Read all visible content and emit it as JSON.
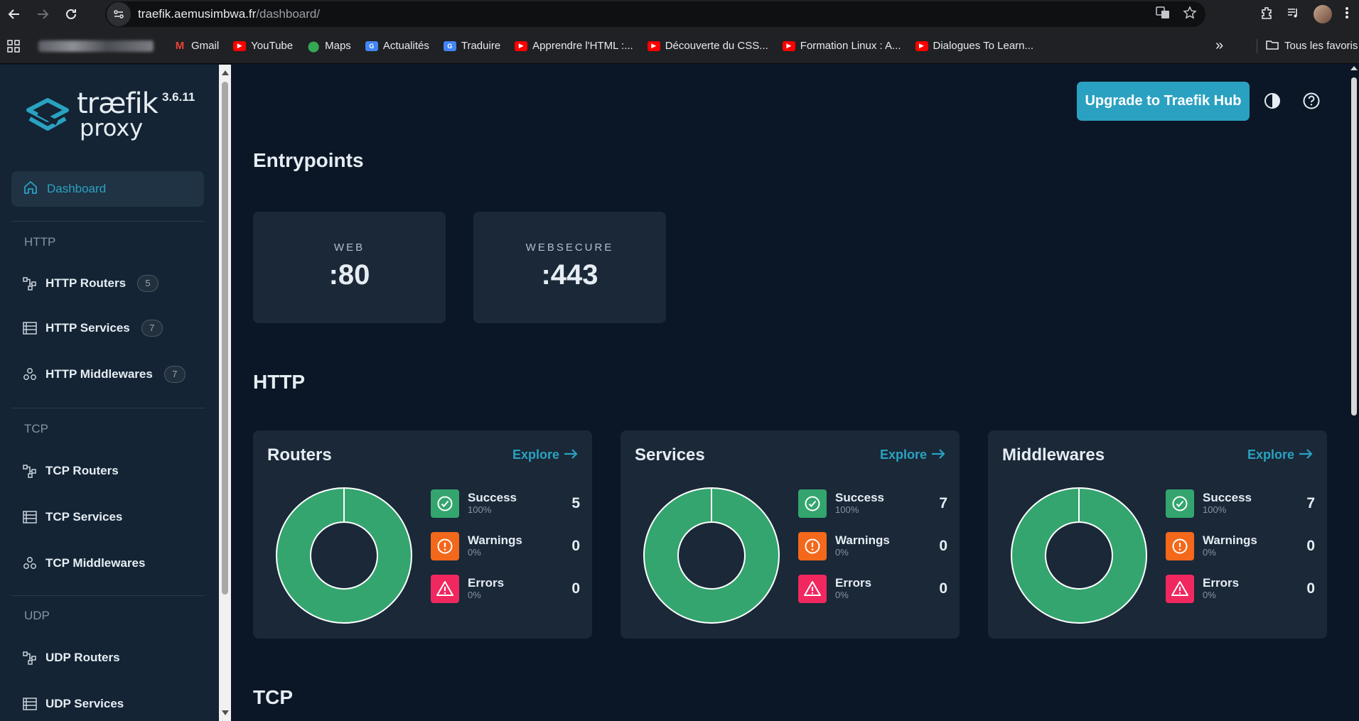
{
  "browser": {
    "url_host": "traefik.aemusimbwa.fr",
    "url_path": "/dashboard/",
    "bookmarks": [
      {
        "label": "Gmail",
        "icon": "gmail-icon"
      },
      {
        "label": "YouTube",
        "icon": "youtube-icon"
      },
      {
        "label": "Maps",
        "icon": "maps-icon"
      },
      {
        "label": "Actualités",
        "icon": "news-icon"
      },
      {
        "label": "Traduire",
        "icon": "translate-icon"
      },
      {
        "label": "Apprendre l'HTML :...",
        "icon": "youtube-icon"
      },
      {
        "label": "Découverte du CSS...",
        "icon": "youtube-icon"
      },
      {
        "label": "Formation Linux : A...",
        "icon": "youtube-icon"
      },
      {
        "label": "Dialogues To Learn...",
        "icon": "youtube-icon"
      }
    ],
    "all_bookmarks": "Tous les favoris",
    "more": "»"
  },
  "sidebar": {
    "brand_name": "træfik",
    "brand_sub": "proxy",
    "version": "3.6.11",
    "dashboard": "Dashboard",
    "sections": [
      {
        "title": "HTTP",
        "items": [
          {
            "label": "HTTP Routers",
            "count": "5"
          },
          {
            "label": "HTTP Services",
            "count": "7"
          },
          {
            "label": "HTTP Middlewares",
            "count": "7"
          }
        ]
      },
      {
        "title": "TCP",
        "items": [
          {
            "label": "TCP Routers"
          },
          {
            "label": "TCP Services"
          },
          {
            "label": "TCP Middlewares"
          }
        ]
      },
      {
        "title": "UDP",
        "items": [
          {
            "label": "UDP Routers"
          },
          {
            "label": "UDP Services"
          }
        ]
      }
    ]
  },
  "header": {
    "upgrade_label": "Upgrade to Traefik Hub"
  },
  "entrypoints": {
    "title": "Entrypoints",
    "items": [
      {
        "name": "WEB",
        "port": ":80"
      },
      {
        "name": "WEBSECURE",
        "port": ":443"
      }
    ]
  },
  "http": {
    "title": "HTTP",
    "explore_label": "Explore",
    "cards": [
      {
        "title": "Routers",
        "success": "5",
        "success_pct": "100%",
        "warnings": "0",
        "warnings_pct": "0%",
        "errors": "0",
        "errors_pct": "0%"
      },
      {
        "title": "Services",
        "success": "7",
        "success_pct": "100%",
        "warnings": "0",
        "warnings_pct": "0%",
        "errors": "0",
        "errors_pct": "0%"
      },
      {
        "title": "Middlewares",
        "success": "7",
        "success_pct": "100%",
        "warnings": "0",
        "warnings_pct": "0%",
        "errors": "0",
        "errors_pct": "0%"
      }
    ],
    "labels": {
      "success": "Success",
      "warnings": "Warnings",
      "errors": "Errors"
    }
  },
  "tcp": {
    "title": "TCP"
  },
  "colors": {
    "accent": "#2ba1c1",
    "success": "#34a56f",
    "warning": "#f3681a",
    "error": "#f0285f"
  }
}
